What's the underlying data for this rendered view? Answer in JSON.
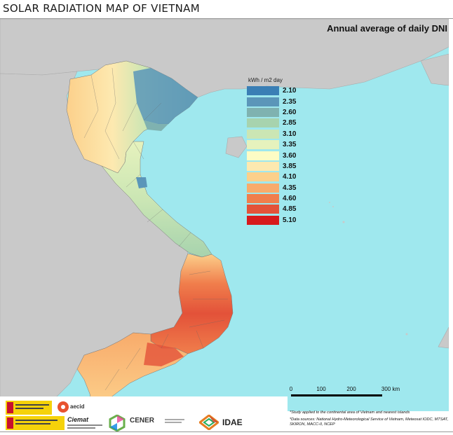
{
  "header": {
    "title": "SOLAR RADIATION MAP OF VIETNAM",
    "subtitle": "Annual average of daily DNI"
  },
  "legend": {
    "unit": "kWh / m2 day",
    "items": [
      {
        "label": "2.10",
        "color": "#3a7fb5"
      },
      {
        "label": "2.35",
        "color": "#5b96b9"
      },
      {
        "label": "2.60",
        "color": "#7fb2b0"
      },
      {
        "label": "2.85",
        "color": "#a7d3ae"
      },
      {
        "label": "3.10",
        "color": "#cbe6b4"
      },
      {
        "label": "3.35",
        "color": "#e6f2bd"
      },
      {
        "label": "3.60",
        "color": "#fdfcc5"
      },
      {
        "label": "3.85",
        "color": "#fde9b0"
      },
      {
        "label": "4.10",
        "color": "#fcd08b"
      },
      {
        "label": "4.35",
        "color": "#f8ab6b"
      },
      {
        "label": "4.60",
        "color": "#f07e4c"
      },
      {
        "label": "4.85",
        "color": "#e35239"
      },
      {
        "label": "5.10",
        "color": "#d7191c"
      }
    ]
  },
  "scale": {
    "labels": [
      "0",
      "100",
      "200",
      "300 km"
    ]
  },
  "notes": [
    "*Study applied to the continental area of Vietnam and nearest islands",
    "*Data sources: National Hydro-Meteorological Service of Vietnam, Meteosat IODC, MTSAT, SKIRON, MACC-II, NCEP"
  ],
  "logos": {
    "aecid": "aecid",
    "ciemat": "Ciemat",
    "cener": "CENER",
    "idae": "IDAE"
  },
  "colors": {
    "sea": "#9fe8ee",
    "land_other": "#c9c9c9"
  }
}
